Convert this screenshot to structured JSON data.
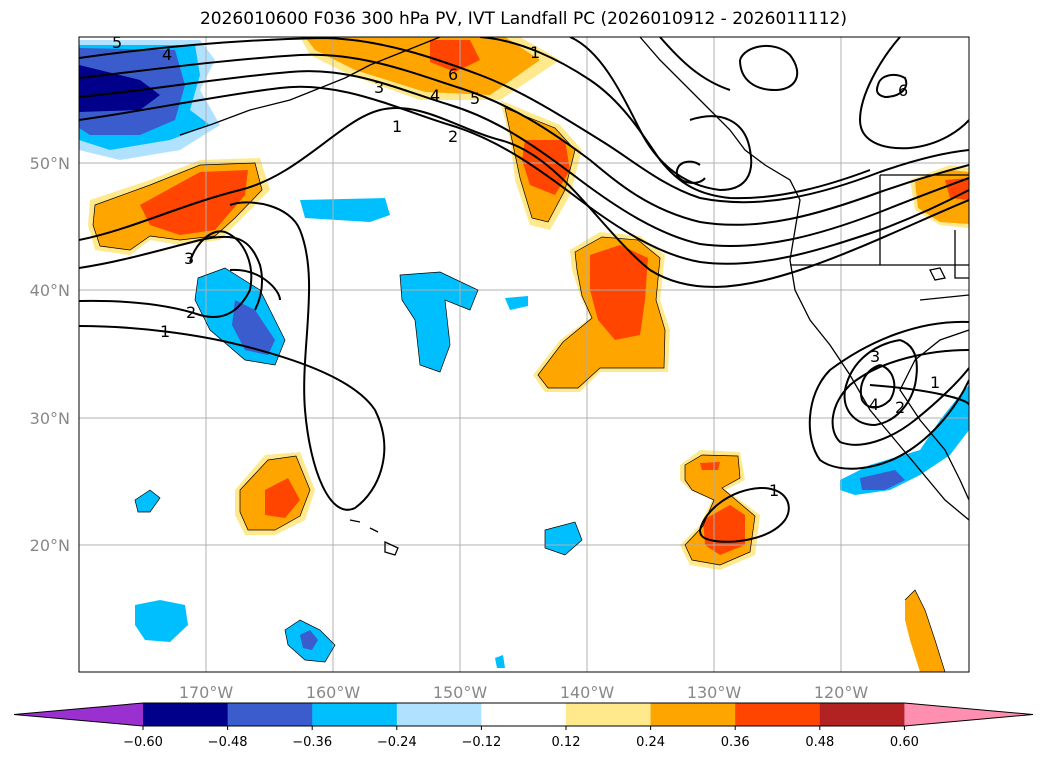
{
  "title": "2026010600 F036 300 hPa PV, IVT Landfall PC (2026010912 - 2026011112)",
  "latitude_labels": [
    "50°N",
    "40°N",
    "30°N",
    "20°N"
  ],
  "longitude_labels": [
    "170°W",
    "160°W",
    "150°W",
    "140°W",
    "130°W",
    "120°W"
  ],
  "colorbar": {
    "tick_labels": [
      "−0.60",
      "−0.48",
      "−0.36",
      "−0.24",
      "−0.12",
      "0.12",
      "0.24",
      "0.36",
      "0.48",
      "0.60"
    ],
    "colors": [
      "#9b30d0",
      "#00008b",
      "#3a5ccc",
      "#00bfff",
      "#b0e2ff",
      "#ffffff",
      "#ffe98c",
      "#ffa500",
      "#ff4500",
      "#b22222",
      "#ff8fb0"
    ]
  },
  "contour_labels": [
    "5",
    "4",
    "3",
    "2",
    "1",
    "6",
    "4",
    "5",
    "6",
    "1",
    "2",
    "3",
    "1",
    "3",
    "4",
    "2",
    "1",
    "1"
  ]
}
